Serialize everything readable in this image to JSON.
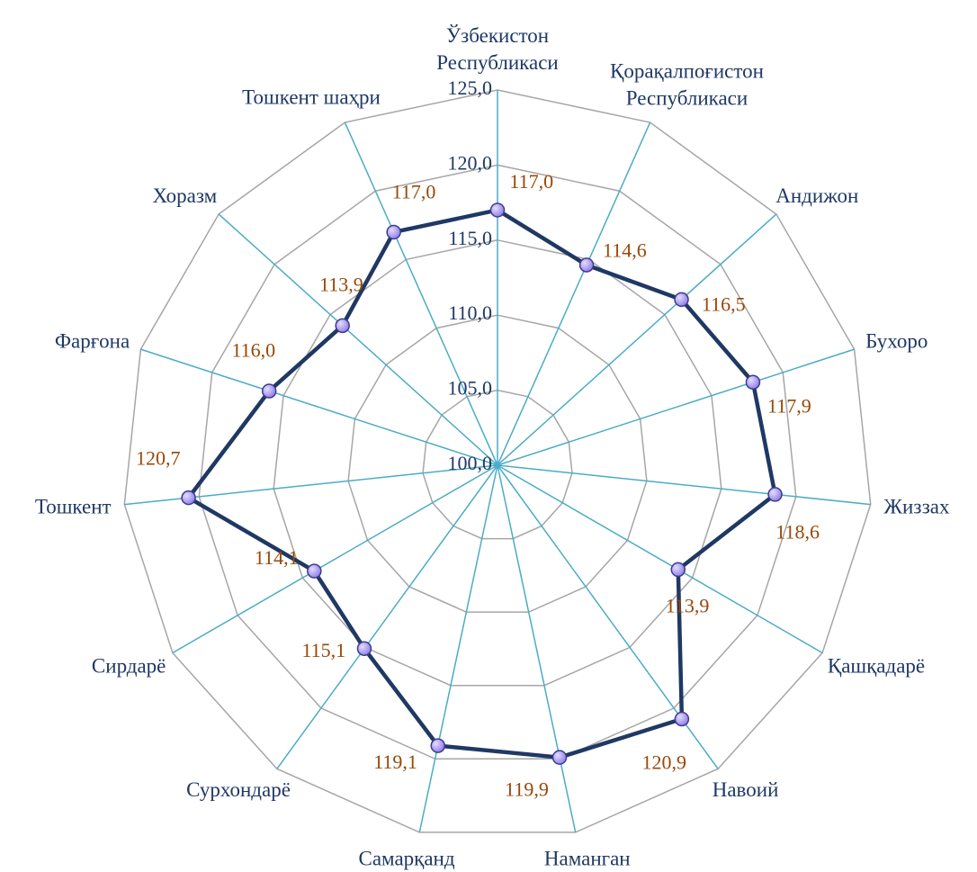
{
  "chart_data": {
    "type": "radar",
    "categories": [
      "Ўзбекистон\nРеспубликаси",
      "Қорақалпоғистон\nРеспубликаси",
      "Андижон",
      "Бухоро",
      "Жиззах",
      "Қашқадарё",
      "Навоий",
      "Наманган",
      "Самарқанд",
      "Сурхондарё",
      "Сирдарё",
      "Тошкент",
      "Фарғона",
      "Хоразм",
      "Тошкент шаҳри"
    ],
    "values": [
      117.0,
      114.6,
      116.5,
      117.9,
      118.6,
      113.9,
      120.9,
      119.9,
      119.1,
      115.1,
      114.1,
      120.7,
      116.0,
      113.9,
      117.0
    ],
    "value_labels": [
      "117,0",
      "114,6",
      "116,5",
      "117,9",
      "118,6",
      "113,9",
      "120,9",
      "119,9",
      "119,1",
      "115,1",
      "114,1",
      "120,7",
      "116,0",
      "113,9",
      "117,0"
    ],
    "color": "#1f3864",
    "ylim": [
      100,
      125
    ],
    "yticks": [
      {
        "value": 100,
        "label": "100,0"
      },
      {
        "value": 105,
        "label": "105,0"
      },
      {
        "value": 110,
        "label": "110,0"
      },
      {
        "value": 115,
        "label": "115,0"
      },
      {
        "value": 120,
        "label": "120,0"
      },
      {
        "value": 125,
        "label": "125,0"
      }
    ],
    "grid": true
  }
}
